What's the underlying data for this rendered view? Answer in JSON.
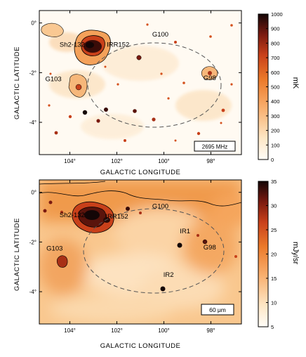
{
  "chart_data": [
    {
      "type": "heatmap",
      "xlabel": "GALACTIC LONGITUDE",
      "ylabel": "GALACTIC LATITUDE",
      "xlim": [
        105.3,
        96.7
      ],
      "ylim": [
        -5.3,
        0.5
      ],
      "xticks": [
        {
          "value": 104,
          "label": "104°"
        },
        {
          "value": 102,
          "label": "102°"
        },
        {
          "value": 100,
          "label": "100°"
        },
        {
          "value": 98,
          "label": "98°"
        }
      ],
      "yticks": [
        {
          "value": 0,
          "label": "0°"
        },
        {
          "value": -2,
          "label": "-2°"
        },
        {
          "value": -4,
          "label": "-4°"
        }
      ],
      "colorbar": {
        "label": "mK",
        "range": [
          0,
          1000
        ],
        "ticks": [
          0,
          100,
          200,
          300,
          400,
          500,
          600,
          700,
          800,
          900,
          1000
        ]
      },
      "frequency_label": "2695 MHz",
      "annotations": [
        {
          "text": "Sh2-132",
          "l": 103.9,
          "b": -0.95
        },
        {
          "text": "IRR152",
          "l": 101.95,
          "b": -0.95
        },
        {
          "text": "G100",
          "l": 100.15,
          "b": -0.55
        },
        {
          "text": "G103",
          "l": 104.7,
          "b": -2.35
        },
        {
          "text": "G98",
          "l": 98.05,
          "b": -2.3
        }
      ],
      "ellipse": {
        "center_l": 99.9,
        "center_b": -1.9,
        "semi_l": 2.2,
        "semi_b": 1.8,
        "style": "dashed"
      },
      "sources": [
        {
          "l": 102.9,
          "b": -0.5,
          "value": 950
        },
        {
          "l": 104.4,
          "b": -1.0,
          "value": 300
        },
        {
          "l": 104.3,
          "b": -1.9,
          "value": 250
        },
        {
          "l": 98.2,
          "b": -1.3,
          "value": 350
        },
        {
          "l": 98.0,
          "b": -1.5,
          "value": 300
        },
        {
          "l": 102.8,
          "b": -2.7,
          "value": 900
        },
        {
          "l": 101.8,
          "b": -2.5,
          "value": 700
        },
        {
          "l": 100.4,
          "b": -2.6,
          "value": 650
        },
        {
          "l": 100.2,
          "b": -0.95,
          "value": 500
        },
        {
          "l": 102.4,
          "b": -3.2,
          "value": 600
        },
        {
          "l": 99.4,
          "b": -3.1,
          "value": 550
        },
        {
          "l": 97.4,
          "b": -2.6,
          "value": 500
        },
        {
          "l": 103.8,
          "b": -3.3,
          "value": 400
        },
        {
          "l": 104.6,
          "b": -4.1,
          "value": 450
        },
        {
          "l": 98.4,
          "b": -3.9,
          "value": 400
        },
        {
          "l": 101.1,
          "b": -4.3,
          "value": 350
        }
      ]
    },
    {
      "type": "heatmap",
      "xlabel": "GALACTIC LONGITUDE",
      "ylabel": "GALACTIC LATITUDE",
      "xlim": [
        105.3,
        96.7
      ],
      "ylim": [
        -5.3,
        0.5
      ],
      "xticks": [
        {
          "value": 104,
          "label": "104°"
        },
        {
          "value": 102,
          "label": "102°"
        },
        {
          "value": 100,
          "label": "100°"
        },
        {
          "value": 98,
          "label": "98°"
        }
      ],
      "yticks": [
        {
          "value": 0,
          "label": "0°"
        },
        {
          "value": -2,
          "label": "-2°"
        },
        {
          "value": -4,
          "label": "-4°"
        }
      ],
      "colorbar": {
        "label": "mJy/sr",
        "range": [
          5,
          35
        ],
        "ticks": [
          5,
          10,
          15,
          20,
          25,
          30,
          35
        ]
      },
      "frequency_label": "60 μm",
      "annotations": [
        {
          "text": "Sh2-132",
          "l": 103.9,
          "b": -1.0
        },
        {
          "text": "IRR152",
          "l": 102.0,
          "b": -1.05
        },
        {
          "text": "G100",
          "l": 100.15,
          "b": -0.65
        },
        {
          "text": "G103",
          "l": 104.65,
          "b": -2.35
        },
        {
          "text": "G98",
          "l": 98.05,
          "b": -2.3
        },
        {
          "text": "IR1",
          "l": 99.1,
          "b": -1.65
        },
        {
          "text": "IR2",
          "l": 99.8,
          "b": -3.4
        }
      ],
      "ellipse": {
        "center_l": 100.0,
        "center_b": -2.1,
        "semi_l": 2.05,
        "semi_b": 1.6,
        "style": "dashed"
      },
      "sources": [
        {
          "l": 102.9,
          "b": -0.6,
          "value": 34
        },
        {
          "l": 103.0,
          "b": -0.45,
          "value": 32
        },
        {
          "l": 101.8,
          "b": -0.5,
          "value": 26
        },
        {
          "l": 101.2,
          "b": -0.45,
          "value": 22
        },
        {
          "l": 103.55,
          "b": -2.6,
          "value": 24
        },
        {
          "l": 99.05,
          "b": -1.95,
          "value": 26
        },
        {
          "l": 99.7,
          "b": -3.65,
          "value": 28
        },
        {
          "l": 98.1,
          "b": -1.85,
          "value": 20
        },
        {
          "l": 104.3,
          "b": -0.55,
          "value": 22
        }
      ]
    }
  ]
}
